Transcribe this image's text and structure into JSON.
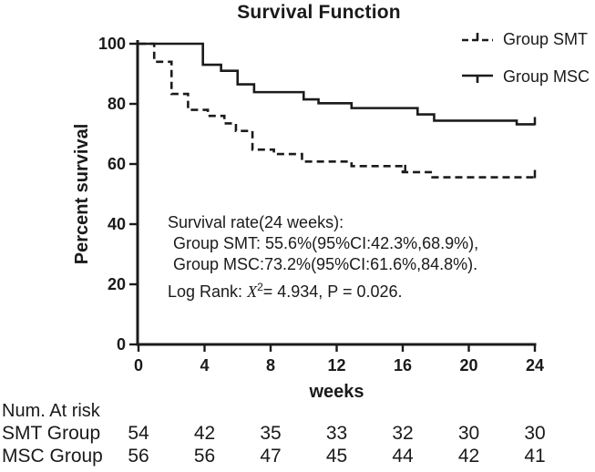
{
  "chart_data": {
    "type": "line",
    "subtype": "kaplan-meier-step",
    "title": "Survival Function",
    "xlabel": "weeks",
    "ylabel": "Percent survival",
    "xlim": [
      0,
      24
    ],
    "ylim": [
      0,
      100
    ],
    "x_ticks": [
      0,
      4,
      8,
      12,
      16,
      20,
      24
    ],
    "y_ticks": [
      0,
      20,
      40,
      60,
      80,
      100
    ],
    "grid": false,
    "legend_position": "top-right-outside",
    "line_color": "#1b1b1b",
    "series": [
      {
        "name": "Group SMT",
        "line_style": "dashed",
        "color": "#1b1b1b",
        "steps": [
          [
            0,
            100
          ],
          [
            0.95,
            94
          ],
          [
            2,
            83.3
          ],
          [
            3,
            78
          ],
          [
            4.2,
            76
          ],
          [
            5.2,
            73.5
          ],
          [
            5.9,
            71
          ],
          [
            6.9,
            64.8
          ],
          [
            8.2,
            63.3
          ],
          [
            9.9,
            60.8
          ],
          [
            12.9,
            59.3
          ],
          [
            16,
            57.3
          ],
          [
            17.8,
            55.6
          ],
          [
            24,
            55.6
          ]
        ],
        "censor_ticks": [
          16.15,
          24
        ],
        "survival_24w": "55.6%",
        "ci_24w": "42.3%,68.9%"
      },
      {
        "name": "Group MSC",
        "line_style": "solid",
        "color": "#1b1b1b",
        "steps": [
          [
            0,
            100
          ],
          [
            3.9,
            93
          ],
          [
            5,
            91
          ],
          [
            6,
            86.5
          ],
          [
            7,
            83.9
          ],
          [
            10,
            81.5
          ],
          [
            10.9,
            80.2
          ],
          [
            12.9,
            78.6
          ],
          [
            16.9,
            76.5
          ],
          [
            17.9,
            74.4
          ],
          [
            22.9,
            73.2
          ],
          [
            24,
            73.2
          ]
        ],
        "censor_ticks": [
          24
        ],
        "survival_24w": "73.2%",
        "ci_24w": "61.6%,84.8%"
      }
    ],
    "annotation": {
      "line1": "Survival rate(24 weeks):",
      "line2": "Group SMT: 55.6%(95%CI:42.3%,68.9%),",
      "line3": "Group MSC:73.2%(95%CI:61.6%,84.8%).",
      "line4_prefix": "Log Rank: ",
      "line4_chi": "X",
      "line4_sup": "2",
      "line4_rest": "= 4.934, P = 0.026."
    },
    "risk_table": {
      "header": "Num. At risk",
      "time_points": [
        0,
        4,
        8,
        12,
        16,
        20,
        24
      ],
      "rows": [
        {
          "label": "SMT Group",
          "values": [
            54,
            42,
            35,
            33,
            32,
            30,
            30
          ]
        },
        {
          "label": "MSC Group",
          "values": [
            56,
            56,
            47,
            45,
            44,
            42,
            41
          ]
        }
      ]
    }
  }
}
